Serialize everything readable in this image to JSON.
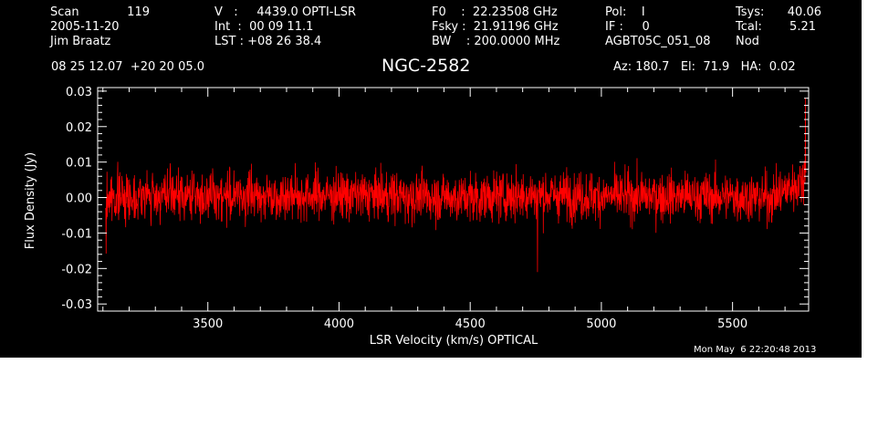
{
  "header": {
    "col1": {
      "scan_label": "Scan",
      "scan_number": "119",
      "date": "2005-11-20",
      "observer": "Jim Braatz"
    },
    "col2": {
      "v": "V   :     4439.0 OPTI-LSR",
      "int": "Int  :  00 09 11.1",
      "lst": "LST : +08 26 38.4"
    },
    "col3": {
      "f0": "F0    :  22.23508 GHz",
      "fsky": "Fsky :  21.91196 GHz",
      "bw": "BW    : 200.0000 MHz"
    },
    "col4": {
      "pol": "Pol:    I",
      "if": "IF :     0",
      "project": "AGBT05C_051_08"
    },
    "col5": {
      "tsys_label": "Tsys:",
      "tsys_value": "40.06",
      "tcal_label": "Tcal:",
      "tcal_value": "5.21",
      "mode": "Nod"
    },
    "coords": "08 25 12.07  +20 20 05.0",
    "pointing": "Az: 180.7   El:  71.9   HA:  0.02"
  },
  "footer": {
    "timestamp": "Mon May  6 22:20:48 2013"
  },
  "colors": {
    "background": "#000000",
    "trace": "#ff0000",
    "axes": "#ffffff"
  },
  "chart_data": {
    "type": "line",
    "title": "NGC-2582",
    "xlabel": "LSR Velocity (km/s) OPTICAL",
    "ylabel": "Flux Density (Jy)",
    "xlim": [
      3080,
      5790
    ],
    "ylim": [
      -0.032,
      0.031
    ],
    "xticks": [
      3500,
      4000,
      4500,
      5000,
      5500
    ],
    "xtick_labels": [
      "3500",
      "4000",
      "4500",
      "5000",
      "5500"
    ],
    "yticks": [
      -0.03,
      -0.02,
      -0.01,
      0.0,
      0.01,
      0.02,
      0.03
    ],
    "ytick_labels": [
      "-0.03",
      "-0.02",
      "-0.01",
      "0.00",
      "0.01",
      "0.02",
      "0.03"
    ],
    "grid": false,
    "series": [
      {
        "color": "#ff0000",
        "x": [
          3110,
          3250,
          3500,
          3750,
          4000,
          4250,
          4500,
          4750,
          5000,
          5250,
          5500,
          5650,
          5780
        ],
        "y": [
          0.0,
          0.0005,
          0.0005,
          0.0006,
          0.0007,
          0.0004,
          0.0,
          0.0008,
          0.0003,
          0.0004,
          0.0003,
          0.0,
          0.005
        ],
        "noise_rms": 0.0055
      }
    ]
  }
}
